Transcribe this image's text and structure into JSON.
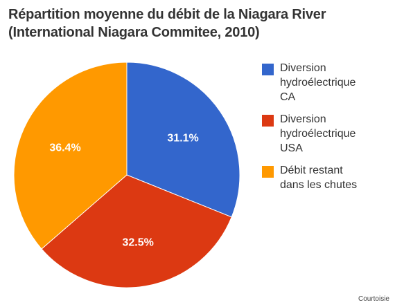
{
  "chart_data": {
    "type": "pie",
    "title_lines": [
      "Répartition moyenne du débit de la Niagara River",
      "(International Niagara Commitee, 2010)"
    ],
    "slices": [
      {
        "label": "Diversion hydroélectrique CA",
        "value": 31.1,
        "value_label": "31.1%",
        "color": "#3366cc"
      },
      {
        "label": "Diversion hydroélectrique USA",
        "value": 32.5,
        "value_label": "32.5%",
        "color": "#dc3912"
      },
      {
        "label": "Débit restant dans les chutes",
        "value": 36.4,
        "value_label": "36.4%",
        "color": "#ff9900"
      }
    ],
    "legend_position": "right",
    "start": "top",
    "direction": "clockwise"
  },
  "legend": {
    "items": [
      {
        "label": "Diversion\nhydroélectrique\nCA",
        "color": "#3366cc"
      },
      {
        "label": "Diversion\nhydroélectrique\nUSA",
        "color": "#dc3912"
      },
      {
        "label": "Débit restant\ndans les chutes",
        "color": "#ff9900"
      }
    ]
  },
  "source_note": "Courtoisie"
}
